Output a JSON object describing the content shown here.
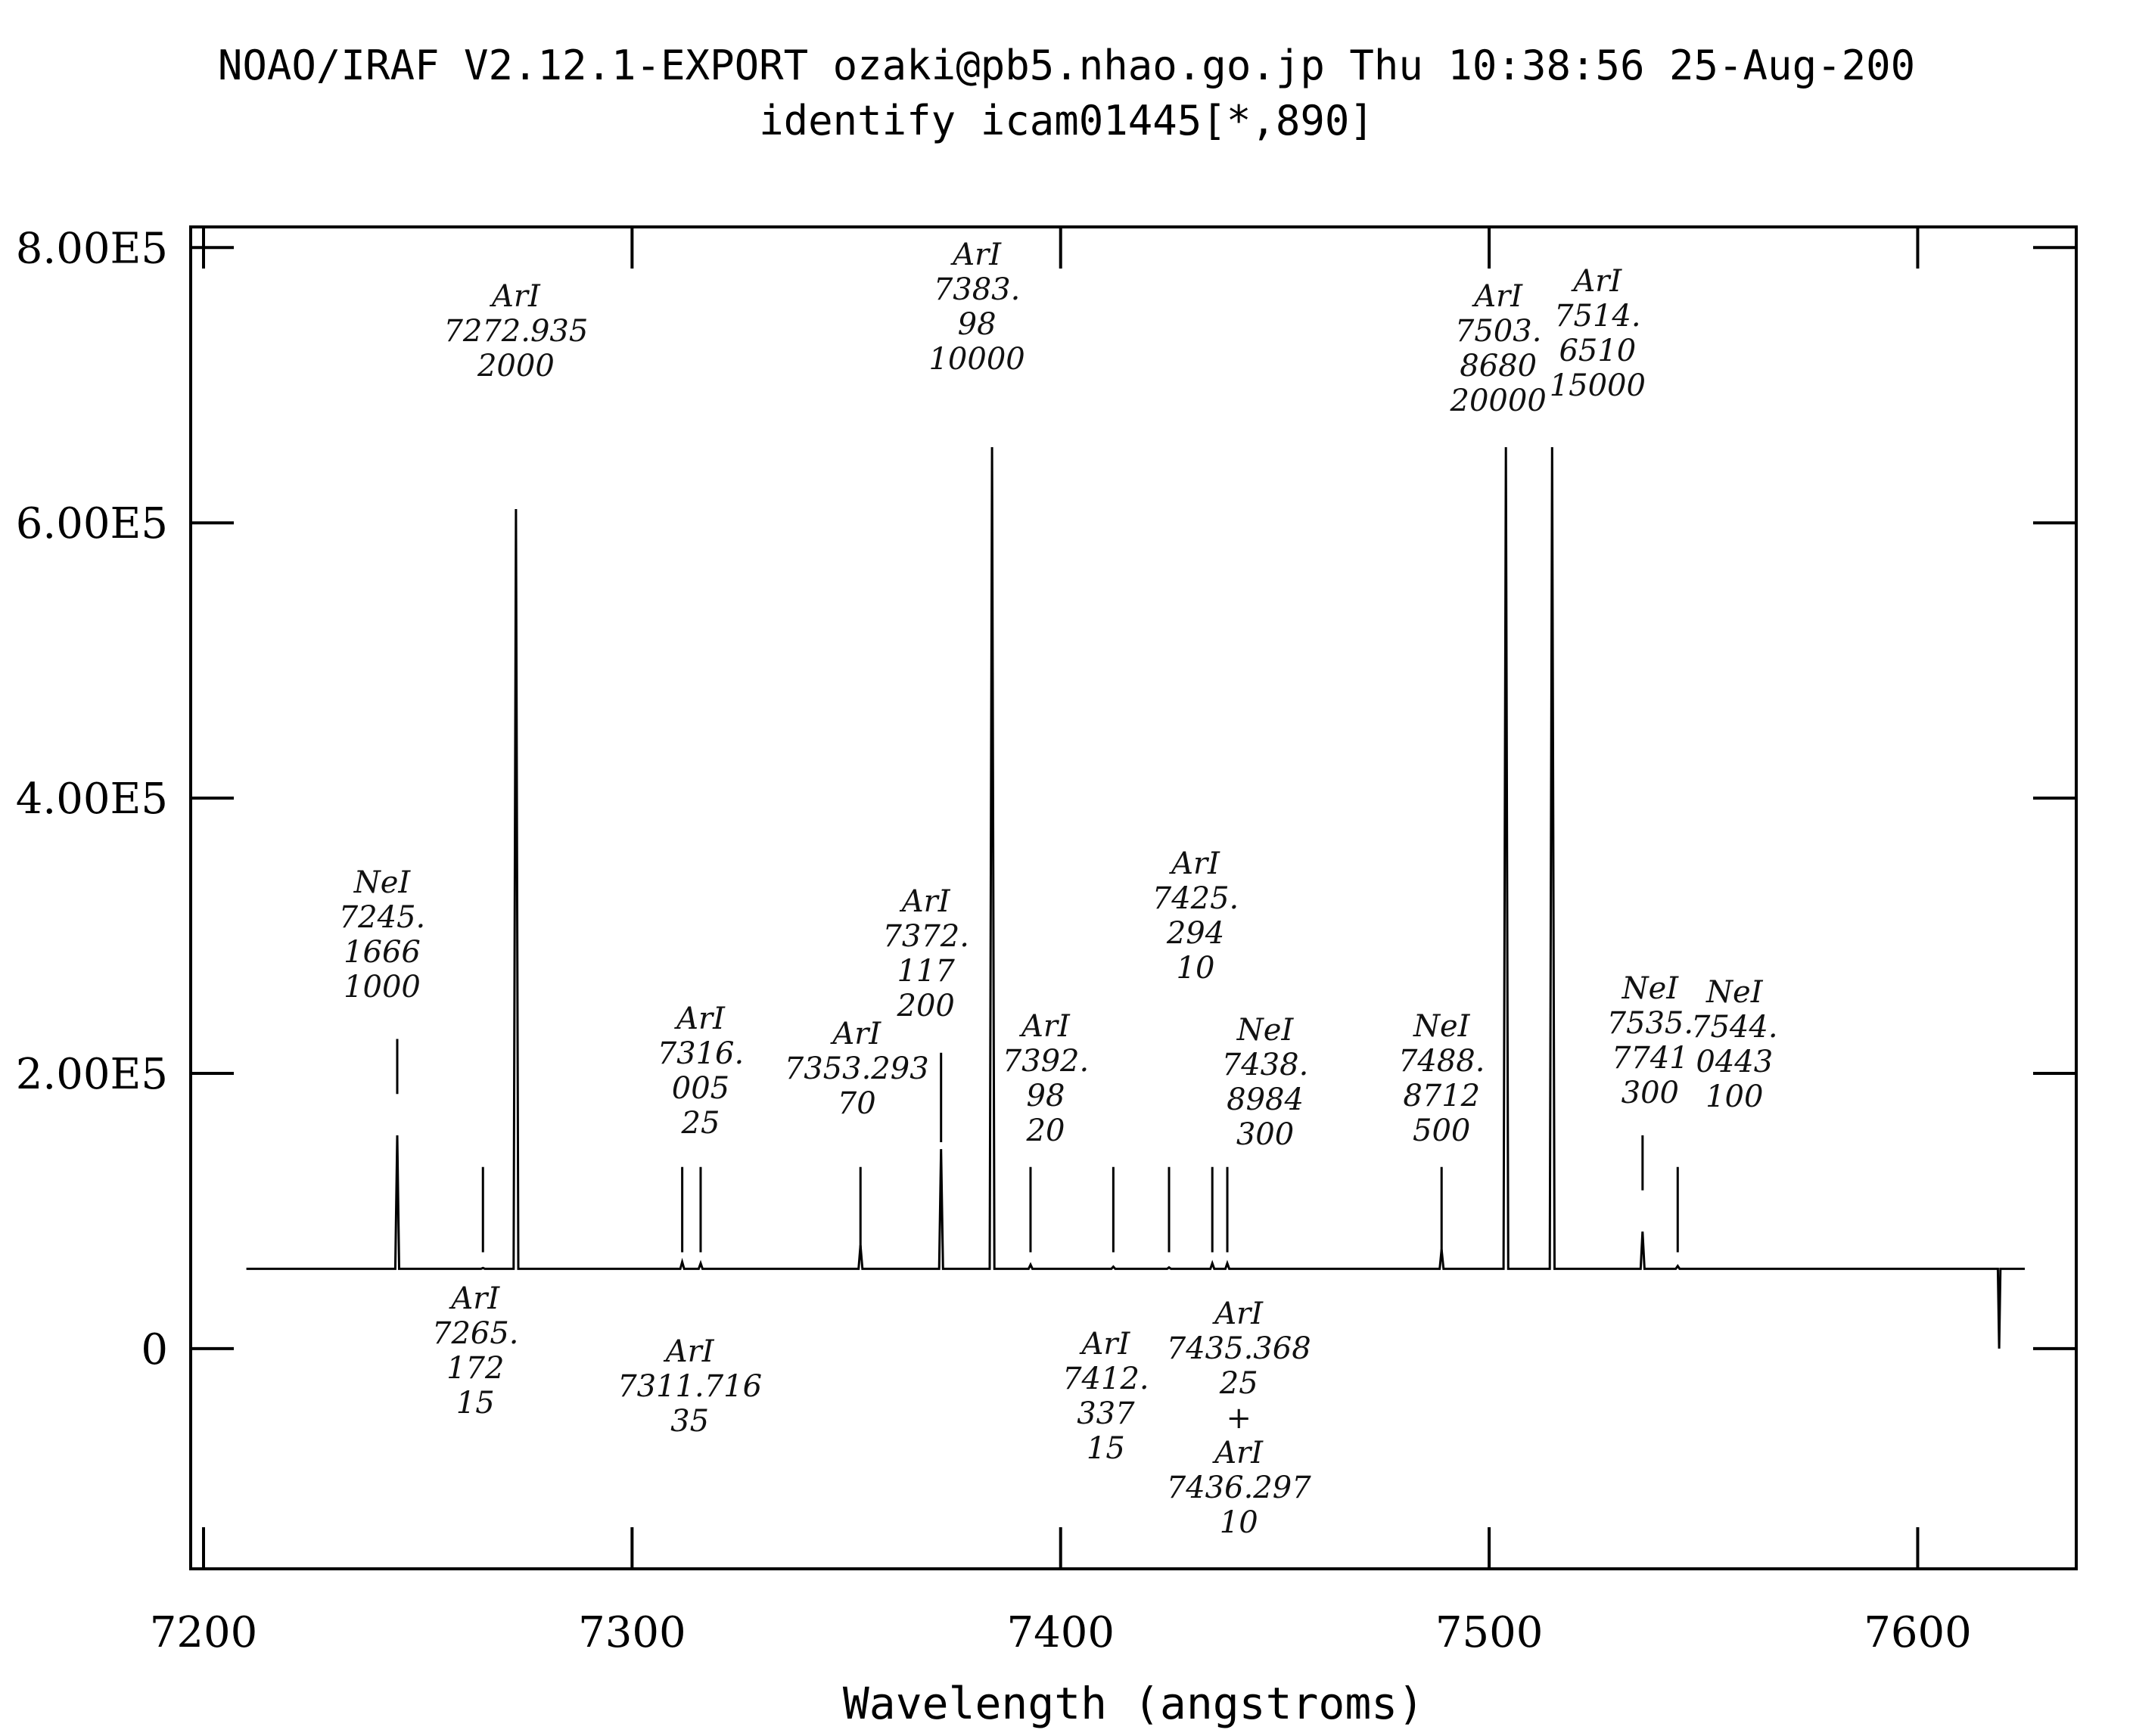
{
  "header": {
    "line1": "NOAO/IRAF V2.12.1-EXPORT ozaki@pb5.nhao.go.jp Thu 10:38:56 25-Aug-200",
    "line2": "identify icam01445[*,890]"
  },
  "chart_data": {
    "type": "line",
    "title": "",
    "xlabel": "Wavelength (angstroms)",
    "ylabel": "",
    "xlim": [
      7197,
      7637
    ],
    "ylim": [
      -160000,
      815000
    ],
    "xticks": [
      7200,
      7300,
      7400,
      7500,
      7600
    ],
    "xtick_labels": [
      "7200",
      "7300",
      "7400",
      "7500",
      "7600"
    ],
    "yticks": [
      0,
      200000,
      400000,
      600000,
      800000
    ],
    "ytick_labels": [
      "0",
      "2.00E5",
      "4.00E5",
      "6.00E5",
      "8.00E5"
    ],
    "spectrum": {
      "baseline": 58000,
      "x_start": 7210,
      "x_end": 7625,
      "peaks": [
        {
          "x": 7245.2,
          "y": 155000
        },
        {
          "x": 7265.2,
          "y": 58600
        },
        {
          "x": 7272.9,
          "y": 610000
        },
        {
          "x": 7311.7,
          "y": 63000
        },
        {
          "x": 7316.0,
          "y": 62000
        },
        {
          "x": 7353.3,
          "y": 75000
        },
        {
          "x": 7372.1,
          "y": 145000
        },
        {
          "x": 7384.0,
          "y": 655000
        },
        {
          "x": 7392.98,
          "y": 61000
        },
        {
          "x": 7412.3,
          "y": 59500
        },
        {
          "x": 7425.3,
          "y": 59000
        },
        {
          "x": 7435.4,
          "y": 62000
        },
        {
          "x": 7438.9,
          "y": 62000
        },
        {
          "x": 7488.9,
          "y": 72000
        },
        {
          "x": 7503.9,
          "y": 655000
        },
        {
          "x": 7514.7,
          "y": 655000
        },
        {
          "x": 7535.8,
          "y": 85000
        },
        {
          "x": 7544.0,
          "y": 60000
        }
      ],
      "dip": {
        "x": 7619,
        "y": 0
      }
    },
    "annotations": [
      {
        "lines": [
          "NeI",
          "7245.",
          "1666",
          "1000"
        ],
        "x": 7245.2
      },
      {
        "lines": [
          "ArI",
          "7265.",
          "172",
          "15"
        ],
        "x": 7265.2
      },
      {
        "lines": [
          "ArI",
          "7272.935",
          "2000"
        ],
        "x": 7272.9
      },
      {
        "lines": [
          "ArI",
          "7311.716",
          "35"
        ],
        "x": 7311.7
      },
      {
        "lines": [
          "ArI",
          "7316.",
          "005",
          "25"
        ],
        "x": 7316.0
      },
      {
        "lines": [
          "ArI",
          "7353.293",
          "70"
        ],
        "x": 7353.3
      },
      {
        "lines": [
          "ArI",
          "7372.",
          "117",
          "200"
        ],
        "x": 7372.1
      },
      {
        "lines": [
          "ArI",
          "7383.",
          "98",
          "10000"
        ],
        "x": 7384.0
      },
      {
        "lines": [
          "ArI",
          "7392.",
          "98",
          "20"
        ],
        "x": 7392.98
      },
      {
        "lines": [
          "ArI",
          "7412.",
          "337",
          "15"
        ],
        "x": 7412.3
      },
      {
        "lines": [
          "ArI",
          "7425.",
          "294",
          "10"
        ],
        "x": 7425.3
      },
      {
        "lines": [
          "ArI",
          "7435.368",
          "25",
          "+",
          "ArI",
          "7436.297",
          "10"
        ],
        "x": 7435.4
      },
      {
        "lines": [
          "NeI",
          "7438.",
          "8984",
          "300"
        ],
        "x": 7438.9
      },
      {
        "lines": [
          "NeI",
          "7488.",
          "8712",
          "500"
        ],
        "x": 7488.9
      },
      {
        "lines": [
          "ArI",
          "7503.",
          "8680",
          "20000"
        ],
        "x": 7503.9
      },
      {
        "lines": [
          "ArI",
          "7514.",
          "6510",
          "15000"
        ],
        "x": 7514.7
      },
      {
        "lines": [
          "NeI",
          "7535.",
          "7741",
          "300"
        ],
        "x": 7535.8
      },
      {
        "lines": [
          "NeI",
          "7544.",
          "0443",
          "100"
        ],
        "x": 7544.0
      }
    ]
  }
}
